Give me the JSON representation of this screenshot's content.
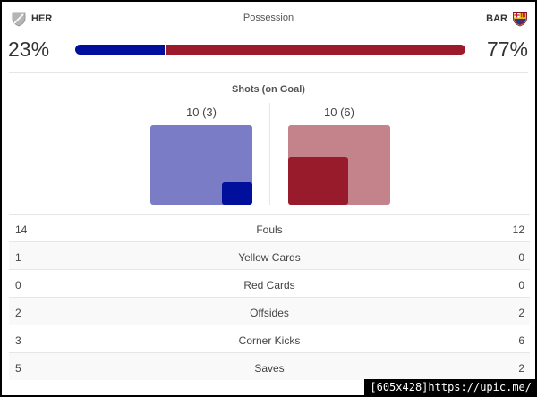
{
  "header": {
    "title": "Possession",
    "home": {
      "abbr": "HER",
      "possession": "23%",
      "possession_value": 23,
      "color": "#00109c"
    },
    "away": {
      "abbr": "BAR",
      "possession": "77%",
      "possession_value": 77,
      "color": "#9b1a2b"
    }
  },
  "shots": {
    "title": "Shots (on Goal)",
    "home": {
      "label": "10 (3)",
      "total": 10,
      "on_goal": 3
    },
    "away": {
      "label": "10 (6)",
      "total": 10,
      "on_goal": 6
    }
  },
  "stats": [
    {
      "label": "Fouls",
      "home": "14",
      "away": "12"
    },
    {
      "label": "Yellow Cards",
      "home": "1",
      "away": "0"
    },
    {
      "label": "Red Cards",
      "home": "0",
      "away": "0"
    },
    {
      "label": "Offsides",
      "home": "2",
      "away": "2"
    },
    {
      "label": "Corner Kicks",
      "home": "3",
      "away": "6"
    },
    {
      "label": "Saves",
      "home": "5",
      "away": "2"
    }
  ],
  "watermark": "[605x428]https://upic.me/",
  "icons": {
    "home_crest": "shield-icon",
    "away_crest": "barcelona-crest-icon"
  }
}
